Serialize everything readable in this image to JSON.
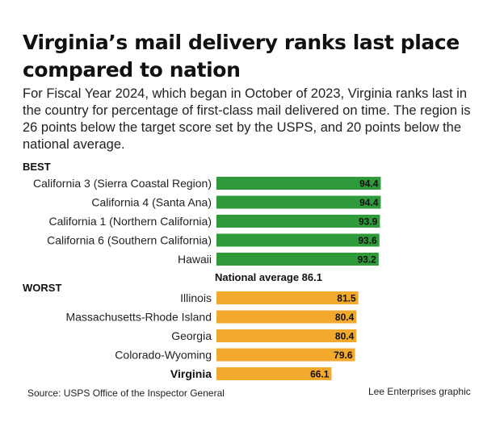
{
  "header": {
    "title": "Virginia’s mail delivery ranks last place compared to nation",
    "subtitle": "For Fiscal Year 2024, which began in October of 2023, Virginia ranks last in the country for percentage of first-class mail delivered on time. The region is 26 points below the target score set by the USPS, and 20 points below the national average."
  },
  "sections": {
    "best": "BEST",
    "worst": "WORST"
  },
  "national_average_label": "National average 86.1",
  "footer": {
    "source": "Source: USPS Office of the Inspector General",
    "credit": "Lee Enterprises graphic"
  },
  "colors": {
    "best": "#2e9a3a",
    "worst": "#f3a92c"
  },
  "chart_data": {
    "type": "bar",
    "orientation": "horizontal",
    "national_average": 86.1,
    "groups": [
      {
        "name": "BEST",
        "color": "#2e9a3a",
        "categories": [
          "California 3 (Sierra Coastal Region)",
          "California 4 (Santa Ana)",
          "California 1 (Northern California)",
          "California 6 (Southern California)",
          "Hawaii"
        ],
        "values": [
          94.4,
          94.4,
          93.9,
          93.6,
          93.2
        ],
        "labels": [
          "94.4",
          "94.4",
          "93.9",
          "93.6",
          "93.2"
        ]
      },
      {
        "name": "WORST",
        "color": "#f3a92c",
        "categories": [
          "Illinois",
          "Massachusetts-Rhode Island",
          "Georgia",
          "Colorado-Wyoming",
          "Virginia"
        ],
        "values": [
          81.5,
          80.4,
          80.4,
          79.6,
          66.1
        ],
        "labels": [
          "81.5",
          "80.4",
          "80.4",
          "79.6",
          "66.1"
        ],
        "highlight": "Virginia"
      }
    ]
  }
}
